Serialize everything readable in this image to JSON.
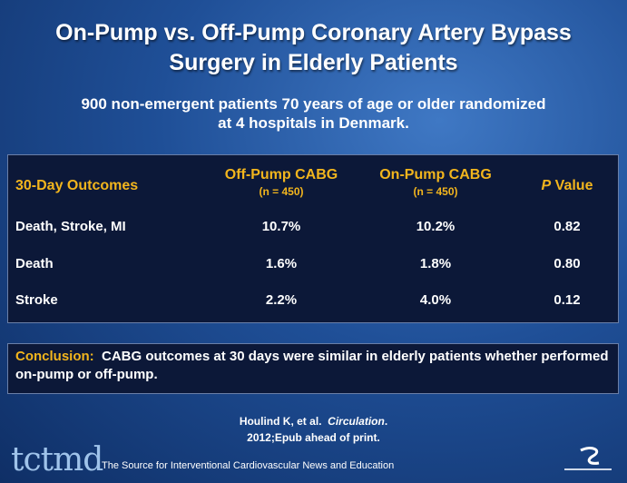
{
  "title": [
    "On-Pump vs. Off-Pump Coronary Artery Bypass",
    "Surgery in Elderly Patients"
  ],
  "subtitle": [
    "900 non-emergent patients 70 years of age or older randomized",
    "at 4 hospitals in Denmark."
  ],
  "table": {
    "header": [
      "30-Day Outcomes",
      {
        "label": "Off-Pump CABG",
        "sub": "(n = 450)"
      },
      {
        "label": "On-Pump CABG",
        "sub": "(n = 450)"
      },
      {
        "italic": "P",
        "label": "Value"
      }
    ],
    "rows": [
      [
        "Death, Stroke, MI",
        "10.7%",
        "10.2%",
        "0.82"
      ],
      [
        "Death",
        "1.6%",
        "1.8%",
        "0.80"
      ],
      [
        "Stroke",
        "2.2%",
        "4.0%",
        "0.12"
      ]
    ]
  },
  "conclusion": {
    "label": "Conclusion:",
    "text": "CABG outcomes at 30 days were similar in elderly patients whether performed on-pump or off-pump."
  },
  "citation": {
    "authors": "Houlind K, et al.",
    "journal": "Circulation",
    "journal_end": ".",
    "details": "2012;Epub ahead of print."
  },
  "footer": {
    "logo": "tctmd",
    "tagline": "The Source for Interventional Cardiovascular News and Education"
  }
}
